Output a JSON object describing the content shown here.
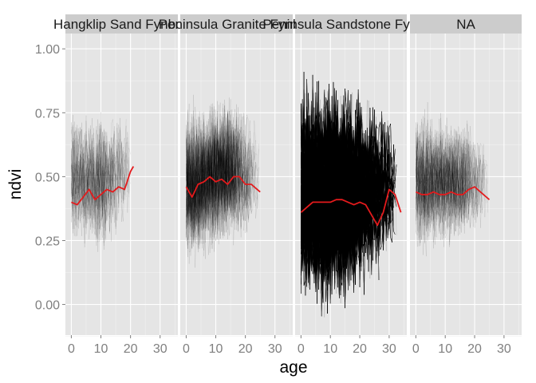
{
  "chart_data": {
    "type": "line",
    "xlabel": "age",
    "ylabel": "ndvi",
    "xlim": [
      -2,
      36
    ],
    "ylim": [
      -0.12,
      1.06
    ],
    "x_ticks": [
      0,
      10,
      20,
      30
    ],
    "y_ticks": [
      0.0,
      0.25,
      0.5,
      0.75,
      1.0
    ],
    "y_tick_labels": [
      "0.00",
      "0.25",
      "0.50",
      "0.75",
      "1.00"
    ],
    "grid": true,
    "colors": {
      "panel_bg": "#e5e5e5",
      "strip_bg": "#cccccc",
      "grid_major": "#ffffff",
      "grid_minor": "#f2f2f2",
      "raw_lines": "#000000",
      "smooth_line": "#e41a1c"
    },
    "facets": [
      {
        "label": "Hangklip Sand Fynbos",
        "raw_band": {
          "x": [
            0,
            5,
            10,
            15,
            20,
            21
          ],
          "low": [
            0.27,
            0.26,
            0.22,
            0.3,
            0.39,
            0.45
          ],
          "high": [
            0.72,
            0.7,
            0.72,
            0.74,
            0.68,
            0.6
          ]
        },
        "smooth": {
          "x": [
            0,
            2,
            4,
            6,
            8,
            10,
            12,
            14,
            16,
            18,
            20,
            21
          ],
          "y": [
            0.4,
            0.39,
            0.42,
            0.45,
            0.41,
            0.43,
            0.45,
            0.44,
            0.46,
            0.45,
            0.52,
            0.54
          ]
        }
      },
      {
        "label": "Peninsula Granite Fynbos",
        "raw_band": {
          "x": [
            0,
            5,
            10,
            15,
            20,
            25
          ],
          "low": [
            0.2,
            0.22,
            0.26,
            0.3,
            0.28,
            0.32
          ],
          "high": [
            0.73,
            0.75,
            0.76,
            0.76,
            0.72,
            0.68
          ]
        },
        "smooth": {
          "x": [
            0,
            2,
            4,
            6,
            8,
            10,
            12,
            14,
            16,
            18,
            20,
            22,
            24,
            25
          ],
          "y": [
            0.46,
            0.42,
            0.47,
            0.48,
            0.5,
            0.48,
            0.49,
            0.47,
            0.5,
            0.5,
            0.47,
            0.47,
            0.45,
            0.44
          ]
        }
      },
      {
        "label": "Peninsula Sandstone Fynbos",
        "raw_band": {
          "x": [
            0,
            5,
            10,
            15,
            20,
            25,
            30,
            33
          ],
          "low": [
            0.1,
            0.05,
            0.02,
            0.05,
            0.1,
            0.15,
            0.22,
            0.26
          ],
          "high": [
            0.8,
            0.81,
            0.82,
            0.8,
            0.78,
            0.75,
            0.7,
            0.63
          ]
        },
        "smooth": {
          "x": [
            0,
            2,
            4,
            6,
            8,
            10,
            12,
            14,
            16,
            18,
            20,
            22,
            24,
            26,
            28,
            30,
            32,
            34
          ],
          "y": [
            0.36,
            0.38,
            0.4,
            0.4,
            0.4,
            0.4,
            0.41,
            0.41,
            0.4,
            0.39,
            0.4,
            0.39,
            0.35,
            0.31,
            0.36,
            0.45,
            0.43,
            0.36
          ]
        }
      },
      {
        "label": "NA",
        "raw_band": {
          "x": [
            0,
            5,
            10,
            15,
            20,
            25
          ],
          "low": [
            0.24,
            0.25,
            0.27,
            0.27,
            0.3,
            0.32
          ],
          "high": [
            0.72,
            0.72,
            0.7,
            0.7,
            0.68,
            0.62
          ]
        },
        "smooth": {
          "x": [
            0,
            2,
            4,
            6,
            8,
            10,
            12,
            14,
            16,
            18,
            20,
            22,
            24,
            25
          ],
          "y": [
            0.44,
            0.43,
            0.43,
            0.44,
            0.43,
            0.43,
            0.44,
            0.43,
            0.43,
            0.45,
            0.46,
            0.44,
            0.42,
            0.41
          ]
        }
      }
    ]
  }
}
